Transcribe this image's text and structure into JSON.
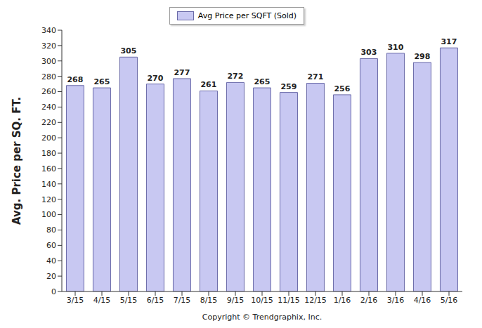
{
  "chart_data": {
    "type": "bar",
    "ylabel": "Avg. Price per SQ. FT.",
    "annotations": [
      "Copyright © Trendgraphix, Inc."
    ],
    "categories": [
      "3/15",
      "4/15",
      "5/15",
      "6/15",
      "7/15",
      "8/15",
      "9/15",
      "10/15",
      "11/15",
      "12/15",
      "1/16",
      "2/16",
      "3/16",
      "4/16",
      "5/16"
    ],
    "series": [
      {
        "name": "Avg Price per SQFT (Sold)",
        "color": "#c8c8f2",
        "values": [
          268,
          265,
          305,
          270,
          277,
          261,
          272,
          265,
          259,
          271,
          256,
          303,
          310,
          298,
          317
        ]
      }
    ],
    "ylim": [
      0,
      340
    ],
    "yticks": [
      0,
      20,
      40,
      60,
      80,
      100,
      120,
      140,
      160,
      180,
      200,
      220,
      240,
      260,
      280,
      300,
      320,
      340
    ],
    "legend": "top",
    "data_labels": true,
    "grid": false
  }
}
